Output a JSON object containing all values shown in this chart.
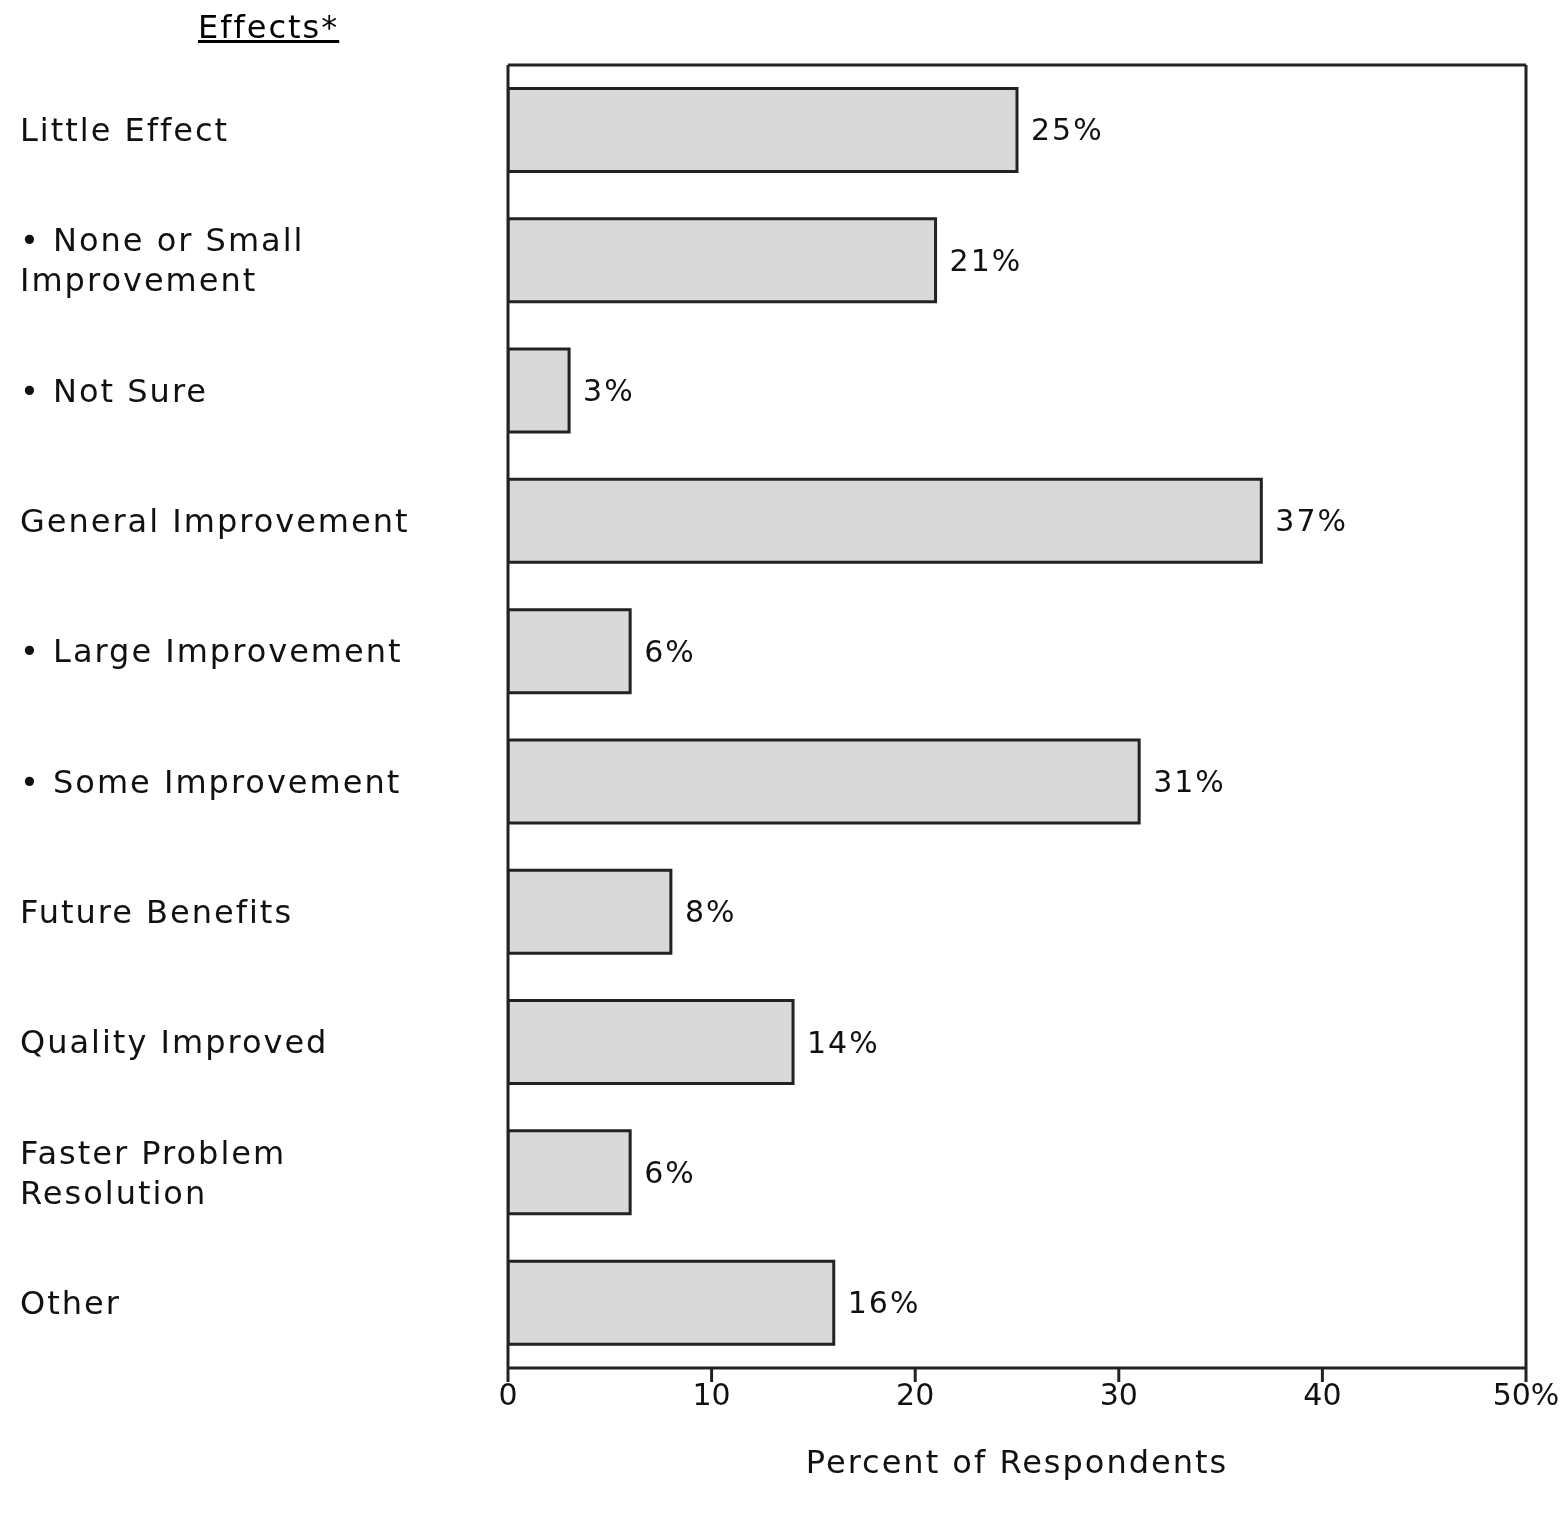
{
  "chart_data": {
    "type": "bar",
    "orientation": "horizontal",
    "title": "Effects*",
    "categories": [
      "Little Effect",
      "• None or Small Improvement",
      "• Not Sure",
      "General Improvement",
      "• Large Improvement",
      "• Some Improvement",
      "Future Benefits",
      "Quality Improved",
      "Faster Problem Resolution",
      "Other"
    ],
    "values": [
      25,
      21,
      3,
      37,
      6,
      31,
      8,
      14,
      6,
      16
    ],
    "value_labels": [
      "25%",
      "21%",
      "3%",
      "37%",
      "6%",
      "31%",
      "8%",
      "14%",
      "6%",
      "16%"
    ],
    "color": "#d9d9d9",
    "xlim": [
      0,
      50
    ],
    "xticks": [
      0,
      10,
      20,
      30,
      40,
      {
        "value": 50,
        "label": "50%"
      }
    ],
    "xlabel": "Percent of Respondents",
    "grid": false
  }
}
